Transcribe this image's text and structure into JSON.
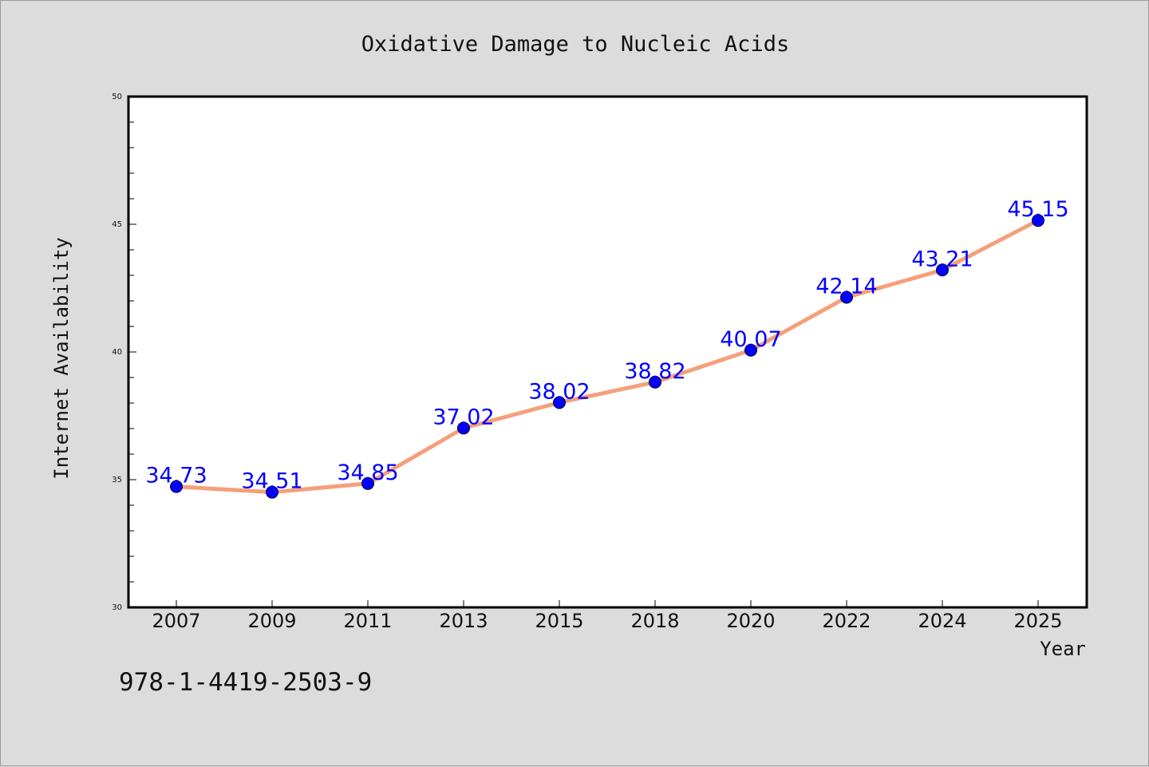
{
  "chart_data": {
    "type": "line",
    "title": "Oxidative Damage to Nucleic Acids",
    "xlabel": "Year",
    "ylabel": "Internet Availability",
    "categories": [
      "2007",
      "2009",
      "2011",
      "2013",
      "2015",
      "2018",
      "2020",
      "2022",
      "2024",
      "2025"
    ],
    "series": [
      {
        "values": [
          34.73,
          34.51,
          34.85,
          37.02,
          38.02,
          38.82,
          40.07,
          42.14,
          43.21,
          45.15
        ]
      }
    ],
    "data_labels": [
      "34.73",
      "34.51",
      "34.85",
      "37.02",
      "38.02",
      "38.82",
      "40.07",
      "42.14",
      "43.21",
      "45.15"
    ],
    "ylim": [
      30,
      50
    ],
    "yticks": [
      "30",
      "35",
      "40",
      "45",
      "50"
    ],
    "grid": false,
    "annotation": "978-1-4419-2503-9",
    "colors": {
      "line": "#f4a07a",
      "marker": "#0000ff",
      "label": "#0000ff",
      "background": "#dcdcdc",
      "plot_bg": "#ffffff"
    }
  }
}
